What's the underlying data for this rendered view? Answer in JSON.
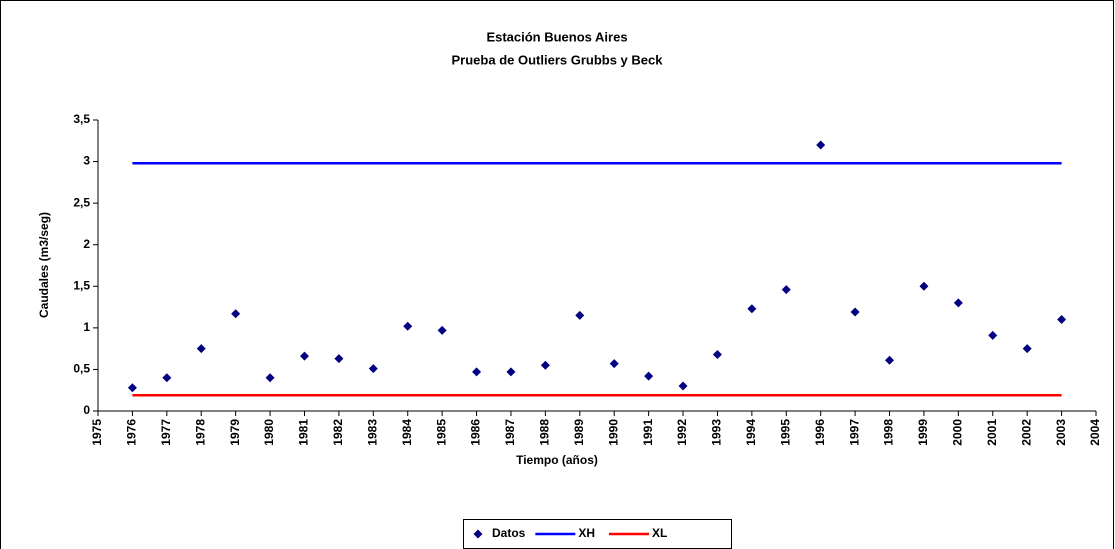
{
  "chart_data": {
    "type": "scatter",
    "title": "Estación Buenos Aires",
    "subtitle": "Prueba de Outliers Grubbs y Beck",
    "xlabel": "Tiempo (años)",
    "ylabel": "Caudales (m3/seg)",
    "xlim": [
      1975,
      2004
    ],
    "xticks": [
      1975,
      1976,
      1977,
      1978,
      1979,
      1980,
      1981,
      1982,
      1983,
      1984,
      1985,
      1986,
      1987,
      1988,
      1989,
      1990,
      1991,
      1992,
      1993,
      1994,
      1995,
      1996,
      1997,
      1998,
      1999,
      2000,
      2001,
      2002,
      2003,
      2004
    ],
    "ylim": [
      0,
      3.5
    ],
    "yticks": [
      0,
      {
        "value": 0.5,
        "label": "0,5"
      },
      1,
      {
        "value": 1.5,
        "label": "1,5"
      },
      2,
      {
        "value": 2.5,
        "label": "2,5"
      },
      3,
      {
        "value": 3.5,
        "label": "3,5"
      }
    ],
    "legend": "bottom",
    "series": [
      {
        "name": "Datos",
        "color": "#000080",
        "mode": "markers",
        "x": [
          1976,
          1977,
          1978,
          1979,
          1980,
          1981,
          1982,
          1983,
          1984,
          1985,
          1986,
          1987,
          1988,
          1989,
          1990,
          1991,
          1992,
          1993,
          1994,
          1995,
          1996,
          1997,
          1998,
          1999,
          2000,
          2001,
          2002,
          2003
        ],
        "values": [
          0.28,
          0.4,
          0.75,
          1.17,
          0.4,
          0.66,
          0.63,
          0.51,
          1.02,
          0.97,
          0.47,
          0.47,
          0.55,
          1.15,
          0.57,
          0.42,
          0.3,
          0.68,
          1.23,
          1.46,
          3.2,
          1.19,
          0.61,
          1.5,
          1.3,
          0.91,
          0.75,
          1.1
        ]
      },
      {
        "name": "XH",
        "color": "#0000ff",
        "mode": "line",
        "x": [
          1976,
          2003
        ],
        "values": [
          2.98,
          2.98
        ]
      },
      {
        "name": "XL",
        "color": "#ff0000",
        "mode": "line",
        "x": [
          1976,
          2003
        ],
        "values": [
          0.19,
          0.19
        ]
      }
    ]
  }
}
